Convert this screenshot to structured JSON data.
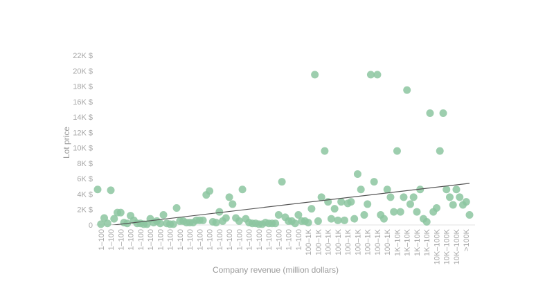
{
  "chart_data": {
    "type": "scatter",
    "x_label": "Company revenue (million dollars)",
    "y_label": "Lot price",
    "color": "#8cc6a0",
    "trend_color": "#555555",
    "categories": [
      null,
      "1–100",
      null,
      null,
      "1–100",
      null,
      null,
      "1–100",
      null,
      null,
      "1–100",
      null,
      null,
      "1–100",
      null,
      null,
      "1–100",
      null,
      null,
      "1–100",
      null,
      null,
      "1–100",
      null,
      null,
      "1–100",
      null,
      null,
      "1–100",
      null,
      null,
      "1–100",
      null,
      null,
      "1–100",
      null,
      null,
      "1–100",
      null,
      null,
      "1–100",
      null,
      null,
      "1–100",
      null,
      null,
      "1–100",
      null,
      null,
      "1–100",
      null,
      null,
      "1–100",
      null,
      null,
      "1–100",
      null,
      null,
      "1–100",
      null,
      null,
      "1–100",
      null,
      null,
      "100–1K",
      null,
      null,
      "100–1K",
      null,
      null,
      "100–1K",
      null,
      null,
      "100–1K",
      null,
      null,
      "100–1K",
      null,
      null,
      "100–1K",
      null,
      null,
      "100–1K",
      null,
      null,
      "100–1K",
      null,
      null,
      "100–1K",
      null,
      null,
      "1K–10K",
      null,
      null,
      "1K–10K",
      null,
      null,
      "1K–10K",
      null,
      null,
      "1K–10K",
      null,
      null,
      "10K–100K",
      null,
      null,
      "10K–100K",
      null,
      null,
      "10K–100K",
      null,
      null,
      ">100K",
      null
    ],
    "values": [
      4600,
      100,
      900,
      200,
      4500,
      800,
      1600,
      1600,
      300,
      200,
      1200,
      600,
      200,
      200,
      100,
      100,
      800,
      300,
      500,
      200,
      1300,
      200,
      100,
      100,
      2200,
      500,
      500,
      300,
      300,
      300,
      600,
      600,
      600,
      3900,
      4400,
      400,
      300,
      1700,
      500,
      900,
      3600,
      2700,
      900,
      500,
      4600,
      800,
      300,
      200,
      200,
      100,
      100,
      300,
      200,
      200,
      200,
      1300,
      5600,
      1000,
      500,
      500,
      200,
      1300,
      500,
      500,
      300,
      2100,
      19500,
      500,
      3600,
      9600,
      3000,
      800,
      2100,
      600,
      3000,
      600,
      2800,
      3000,
      800,
      6600,
      4600,
      1300,
      2700,
      19500,
      5600,
      19500,
      1300,
      800,
      4600,
      3600,
      1700,
      9600,
      1700,
      3600,
      17500,
      2700,
      3600,
      1700,
      4600,
      800,
      400,
      14500,
      1700,
      2200,
      9600,
      14500,
      4600,
      3600,
      2600,
      4600,
      3600,
      2600,
      3000,
      1300
    ],
    "trend_line": [
      -250,
      5400
    ],
    "ylim": [
      0,
      22000
    ],
    "yticks": [
      0,
      {
        "value": 2000,
        "label": "2K $"
      },
      {
        "value": 4000,
        "label": "4K $"
      },
      {
        "value": 6000,
        "label": "6K $"
      },
      {
        "value": 8000,
        "label": "8K $"
      },
      {
        "value": 10000,
        "label": "10K $"
      },
      {
        "value": 12000,
        "label": "12K $"
      },
      {
        "value": 14000,
        "label": "14K $"
      },
      {
        "value": 16000,
        "label": "16K $"
      },
      {
        "value": 18000,
        "label": "18K $"
      },
      {
        "value": 20000,
        "label": "20K $"
      },
      {
        "value": 22000,
        "label": "22K $"
      }
    ]
  }
}
